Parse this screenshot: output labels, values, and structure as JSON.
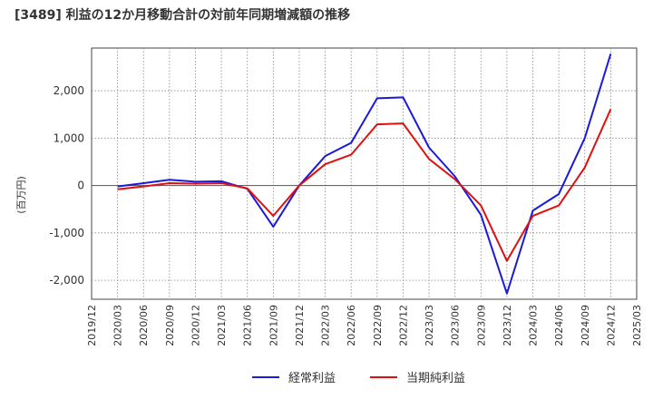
{
  "chart_data": {
    "type": "line",
    "title": "[3489]  利益の12か月移動合計の対前年同期増減額の推移",
    "xlabel": "",
    "ylabel": "(百万円)",
    "ylim": [
      -2400,
      2900
    ],
    "yticks": [
      -2000,
      -1000,
      0,
      1000,
      2000
    ],
    "ytick_labels": [
      "-2,000",
      "-1,000",
      "0",
      "1,000",
      "2,000"
    ],
    "categories": [
      "2019/12",
      "2020/03",
      "2020/06",
      "2020/09",
      "2020/12",
      "2021/03",
      "2021/06",
      "2021/09",
      "2021/12",
      "2022/03",
      "2022/06",
      "2022/09",
      "2022/12",
      "2023/03",
      "2023/06",
      "2023/09",
      "2023/12",
      "2024/03",
      "2024/06",
      "2024/09",
      "2024/12",
      "2025/03"
    ],
    "series": [
      {
        "name": "経常利益",
        "color": "#1a1adb",
        "values": [
          null,
          -20,
          50,
          120,
          80,
          90,
          -70,
          -870,
          0,
          620,
          900,
          1840,
          1860,
          800,
          190,
          -620,
          -2280,
          -530,
          -180,
          1000,
          2780,
          null
        ]
      },
      {
        "name": "当期純利益",
        "color": "#e01010",
        "values": [
          null,
          -80,
          -20,
          50,
          40,
          50,
          -60,
          -640,
          0,
          450,
          650,
          1290,
          1310,
          560,
          130,
          -420,
          -1590,
          -640,
          -420,
          380,
          1610,
          null
        ]
      }
    ],
    "legend_position": "bottom",
    "grid": true
  }
}
